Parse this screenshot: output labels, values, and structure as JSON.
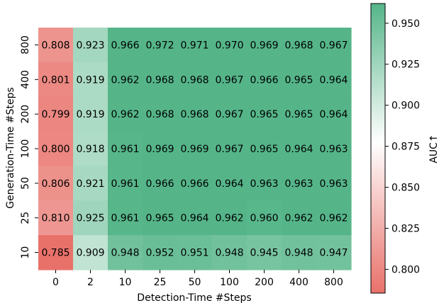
{
  "chart_data": {
    "type": "heatmap",
    "xlabel": "Detection-Time #Steps",
    "ylabel": "Generation-Time #Steps",
    "x_categories": [
      "0",
      "2",
      "10",
      "25",
      "50",
      "100",
      "200",
      "400",
      "800"
    ],
    "y_categories": [
      "800",
      "400",
      "200",
      "100",
      "50",
      "25",
      "10"
    ],
    "values": [
      [
        0.808,
        0.923,
        0.966,
        0.972,
        0.971,
        0.97,
        0.969,
        0.968,
        0.967
      ],
      [
        0.801,
        0.919,
        0.962,
        0.968,
        0.968,
        0.967,
        0.966,
        0.965,
        0.964
      ],
      [
        0.799,
        0.919,
        0.962,
        0.968,
        0.968,
        0.967,
        0.965,
        0.965,
        0.964
      ],
      [
        0.8,
        0.918,
        0.961,
        0.969,
        0.969,
        0.967,
        0.965,
        0.964,
        0.963
      ],
      [
        0.806,
        0.921,
        0.961,
        0.966,
        0.966,
        0.964,
        0.963,
        0.963,
        0.963
      ],
      [
        0.81,
        0.925,
        0.961,
        0.965,
        0.964,
        0.962,
        0.96,
        0.962,
        0.962
      ],
      [
        0.785,
        0.909,
        0.948,
        0.952,
        0.951,
        0.948,
        0.945,
        0.948,
        0.947
      ]
    ],
    "cell_labels": [
      [
        "0.808",
        "0.923",
        "0.966",
        "0.972",
        "0.971",
        "0.970",
        "0.969",
        "0.968",
        "0.967"
      ],
      [
        "0.801",
        "0.919",
        "0.962",
        "0.968",
        "0.968",
        "0.967",
        "0.966",
        "0.965",
        "0.964"
      ],
      [
        "0.799",
        "0.919",
        "0.962",
        "0.968",
        "0.968",
        "0.967",
        "0.965",
        "0.965",
        "0.964"
      ],
      [
        "0.800",
        "0.918",
        "0.961",
        "0.969",
        "0.969",
        "0.967",
        "0.965",
        "0.964",
        "0.963"
      ],
      [
        "0.806",
        "0.921",
        "0.961",
        "0.966",
        "0.966",
        "0.964",
        "0.963",
        "0.963",
        "0.963"
      ],
      [
        "0.810",
        "0.925",
        "0.961",
        "0.965",
        "0.964",
        "0.962",
        "0.960",
        "0.962",
        "0.962"
      ],
      [
        "0.785",
        "0.909",
        "0.948",
        "0.952",
        "0.951",
        "0.948",
        "0.945",
        "0.948",
        "0.947"
      ]
    ],
    "colorbar": {
      "label": "AUC↑",
      "range": [
        0.7855,
        0.962
      ],
      "ticks": [
        0.8,
        0.825,
        0.85,
        0.875,
        0.9,
        0.925,
        0.95
      ],
      "tick_labels": [
        "0.800",
        "0.825",
        "0.850",
        "0.875",
        "0.900",
        "0.925",
        "0.950"
      ],
      "center": 0.8775,
      "colors": {
        "low": "#e8716a",
        "mid": "#ffffff",
        "high": "#55b589"
      }
    },
    "grid": false
  }
}
